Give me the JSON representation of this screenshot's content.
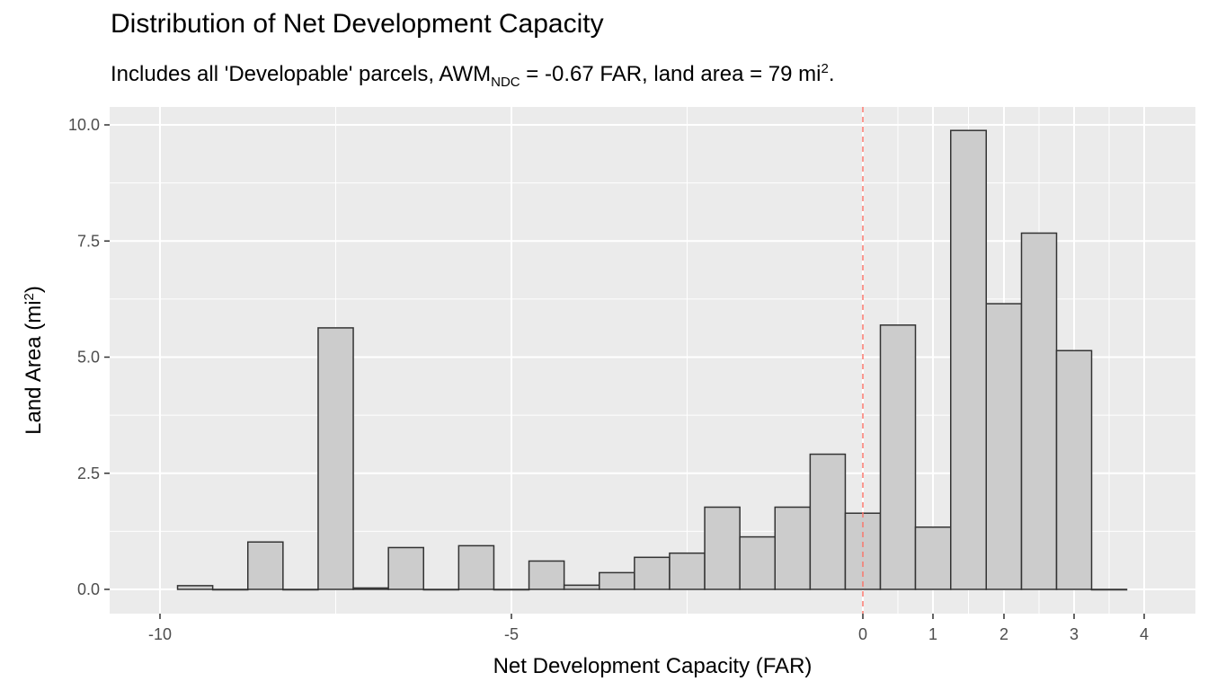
{
  "chart_data": {
    "type": "bar",
    "title": "Distribution of Net Development Capacity",
    "subtitle": {
      "prefix": "Includes all 'Developable' parcels, AWM",
      "sub": "NDC",
      "middle": " = -0.67 FAR, land area = 79 mi",
      "sup": "2",
      "suffix": "."
    },
    "xlabel": "Net Development Capacity (FAR)",
    "ylabel": {
      "main": "Land Area (mi",
      "sup": "2",
      "end": ")"
    },
    "ylim": [
      0,
      10
    ],
    "y_ticks": [
      "0.0",
      "2.5",
      "5.0",
      "7.5",
      "10.0"
    ],
    "y_tick_values": [
      0,
      2.5,
      5,
      7.5,
      10
    ],
    "x_ticks": [
      "-10",
      "-5",
      "0",
      "1",
      "2",
      "3",
      "4"
    ],
    "x_tick_values": [
      -10,
      -5,
      0,
      1,
      2,
      3,
      4
    ],
    "reference_line": {
      "x": 0,
      "style": "dashed",
      "color": "#f8766d"
    },
    "bins": [
      {
        "x0": -9.75,
        "x1": -9.25,
        "value": 0.08
      },
      {
        "x0": -9.25,
        "x1": -8.75,
        "value": 0
      },
      {
        "x0": -8.75,
        "x1": -8.25,
        "value": 1.02
      },
      {
        "x0": -8.25,
        "x1": -7.75,
        "value": 0
      },
      {
        "x0": -7.75,
        "x1": -7.25,
        "value": 5.63
      },
      {
        "x0": -7.25,
        "x1": -6.75,
        "value": 0.03
      },
      {
        "x0": -6.75,
        "x1": -6.25,
        "value": 0.9
      },
      {
        "x0": -6.25,
        "x1": -5.75,
        "value": 0
      },
      {
        "x0": -5.75,
        "x1": -5.25,
        "value": 0.94
      },
      {
        "x0": -5.25,
        "x1": -4.75,
        "value": 0
      },
      {
        "x0": -4.75,
        "x1": -4.25,
        "value": 0.61
      },
      {
        "x0": -4.25,
        "x1": -3.75,
        "value": 0.09
      },
      {
        "x0": -3.75,
        "x1": -3.25,
        "value": 0.36
      },
      {
        "x0": -3.25,
        "x1": -2.75,
        "value": 0.69
      },
      {
        "x0": -2.75,
        "x1": -2.25,
        "value": 0.78
      },
      {
        "x0": -2.25,
        "x1": -1.75,
        "value": 1.77
      },
      {
        "x0": -1.75,
        "x1": -1.25,
        "value": 1.13
      },
      {
        "x0": -1.25,
        "x1": -0.75,
        "value": 1.77
      },
      {
        "x0": -0.75,
        "x1": -0.25,
        "value": 2.91
      },
      {
        "x0": -0.25,
        "x1": 0.25,
        "value": 1.64
      },
      {
        "x0": 0.25,
        "x1": 0.75,
        "value": 5.69
      },
      {
        "x0": 0.75,
        "x1": 1.25,
        "value": 1.34
      },
      {
        "x0": 1.25,
        "x1": 1.75,
        "value": 9.88
      },
      {
        "x0": 1.75,
        "x1": 2.25,
        "value": 6.15
      },
      {
        "x0": 2.25,
        "x1": 2.75,
        "value": 7.67
      },
      {
        "x0": 2.75,
        "x1": 3.25,
        "value": 5.14
      },
      {
        "x0": 3.25,
        "x1": 3.75,
        "value": 0
      }
    ],
    "fill_color": "#cccccc",
    "stroke_color": "#333333",
    "panel_color": "#ebebeb",
    "grid": true
  }
}
